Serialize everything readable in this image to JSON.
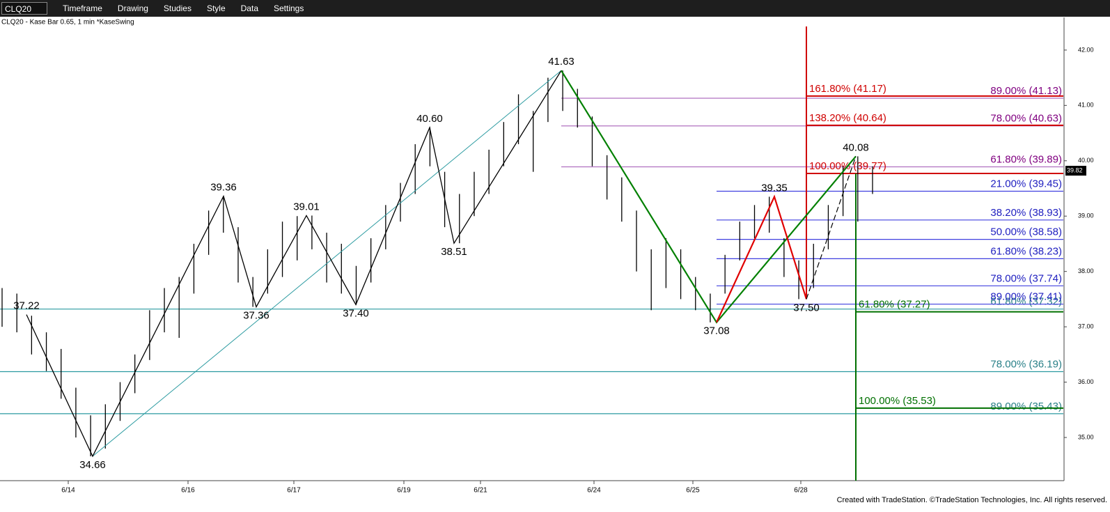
{
  "toolbar": {
    "symbol": "CLQ20",
    "menus": [
      "Timeframe",
      "Drawing",
      "Studies",
      "Style",
      "Data",
      "Settings"
    ]
  },
  "chart_data": {
    "type": "ohlc",
    "subtitle": "CLQ20 - Kase Bar 0.65, 1 min  *KaseSwing",
    "x_labels": [
      "6/14",
      "6/16",
      "6/17",
      "6/19",
      "6/21",
      "6/24",
      "6/25",
      "6/28"
    ],
    "ylim": [
      34.22,
      42.59
    ],
    "yticks": [
      {
        "value": 35,
        "label": "35.00"
      },
      {
        "value": 36,
        "label": "36.00"
      },
      {
        "value": 37,
        "label": "37.00"
      },
      {
        "value": 38,
        "label": "38.00"
      },
      {
        "value": 39,
        "label": "39.00"
      },
      {
        "value": 40,
        "label": "40.00"
      },
      {
        "value": 41,
        "label": "41.00"
      },
      {
        "value": 42,
        "label": "42.00"
      }
    ],
    "bars": {
      "color": "#000000",
      "high": [
        37.7,
        37.6,
        37.2,
        36.9,
        36.6,
        35.9,
        35.4,
        35.6,
        36.0,
        36.5,
        37.3,
        37.7,
        37.9,
        38.5,
        39.1,
        39.36,
        38.8,
        37.9,
        38.4,
        38.9,
        39.0,
        39.01,
        38.7,
        38.5,
        38.1,
        38.6,
        39.2,
        39.6,
        40.3,
        40.6,
        39.8,
        39.4,
        39.8,
        40.2,
        40.7,
        41.2,
        40.9,
        41.5,
        41.63,
        41.3,
        40.8,
        40.1,
        39.7,
        39.1,
        38.4,
        38.6,
        38.4,
        37.9,
        37.6,
        38.3,
        38.9,
        39.2,
        39.35,
        38.6,
        38.2,
        38.5,
        39.2,
        39.9,
        40.08,
        39.9
      ],
      "low": [
        37.0,
        36.9,
        36.5,
        36.2,
        35.7,
        35.0,
        34.66,
        34.8,
        35.3,
        35.8,
        36.4,
        36.9,
        36.8,
        37.6,
        38.3,
        38.7,
        37.8,
        37.36,
        37.6,
        37.9,
        38.2,
        38.4,
        37.8,
        37.6,
        37.4,
        37.8,
        38.4,
        38.9,
        39.4,
        39.9,
        38.8,
        38.51,
        39.0,
        39.4,
        39.9,
        40.3,
        39.8,
        40.7,
        40.9,
        40.6,
        39.9,
        39.3,
        38.9,
        38.0,
        37.3,
        37.7,
        37.5,
        37.3,
        37.08,
        37.6,
        38.2,
        38.6,
        38.7,
        37.9,
        37.5,
        37.7,
        38.4,
        39.0,
        38.9,
        39.4
      ]
    },
    "swings": {
      "color": "#000000",
      "trend_color": "#2a9aa0",
      "leg_colors": [
        "#008000",
        "#e00000"
      ],
      "values": [
        37.22,
        34.66,
        39.36,
        37.36,
        39.01,
        37.4,
        40.6,
        38.51,
        41.63,
        37.08,
        39.35,
        37.5,
        40.08
      ],
      "value_labels": [
        "37.22",
        "34.66",
        "39.36",
        "37.36",
        "39.01",
        "37.40",
        "40.60",
        "38.51",
        "41.63",
        "37.08",
        "39.35",
        "37.50",
        "40.08"
      ]
    },
    "fib_levels": [
      {
        "color": "#2a9aa0",
        "label_color": "#2a8088",
        "levels": [
          {
            "value": 37.32,
            "label": "61.80% (37.32)"
          },
          {
            "value": 36.19,
            "label": "78.00% (36.19)"
          },
          {
            "value": 35.43,
            "label": "89.00% (35.43)"
          }
        ]
      },
      {
        "color": "#b070c0",
        "label_color": "#800080",
        "levels": [
          {
            "value": 41.13,
            "label": "89.00% (41.13)"
          },
          {
            "value": 40.63,
            "label": "78.00% (40.63)"
          },
          {
            "value": 39.89,
            "label": "61.80% (39.89)"
          }
        ]
      },
      {
        "color": "#4040e0",
        "label_color": "#2020c0",
        "levels": [
          {
            "value": 39.45,
            "label": "21.00% (39.45)"
          },
          {
            "value": 38.93,
            "label": "38.20% (38.93)"
          },
          {
            "value": 38.58,
            "label": "50.00% (38.58)"
          },
          {
            "value": 38.23,
            "label": "61.80% (38.23)"
          },
          {
            "value": 37.74,
            "label": "78.00% (37.74)"
          },
          {
            "value": 37.41,
            "label": "89.00% (37.41)"
          }
        ]
      },
      {
        "color": "#d00000",
        "label_color": "#d00000",
        "levels": [
          {
            "value": 41.17,
            "label": "161.80% (41.17)"
          },
          {
            "value": 40.64,
            "label": "138.20% (40.64)"
          },
          {
            "value": 39.77,
            "label": "100.00% (39.77)"
          }
        ]
      },
      {
        "color": "#007000",
        "label_color": "#007000",
        "levels": [
          {
            "value": 37.27,
            "label": "61.80% (37.27)"
          },
          {
            "value": 35.53,
            "label": "100.00% (35.53)"
          }
        ]
      }
    ],
    "last_price": 39.82
  },
  "footer": "Created with TradeStation. ©TradeStation Technologies, Inc. All rights reserved."
}
